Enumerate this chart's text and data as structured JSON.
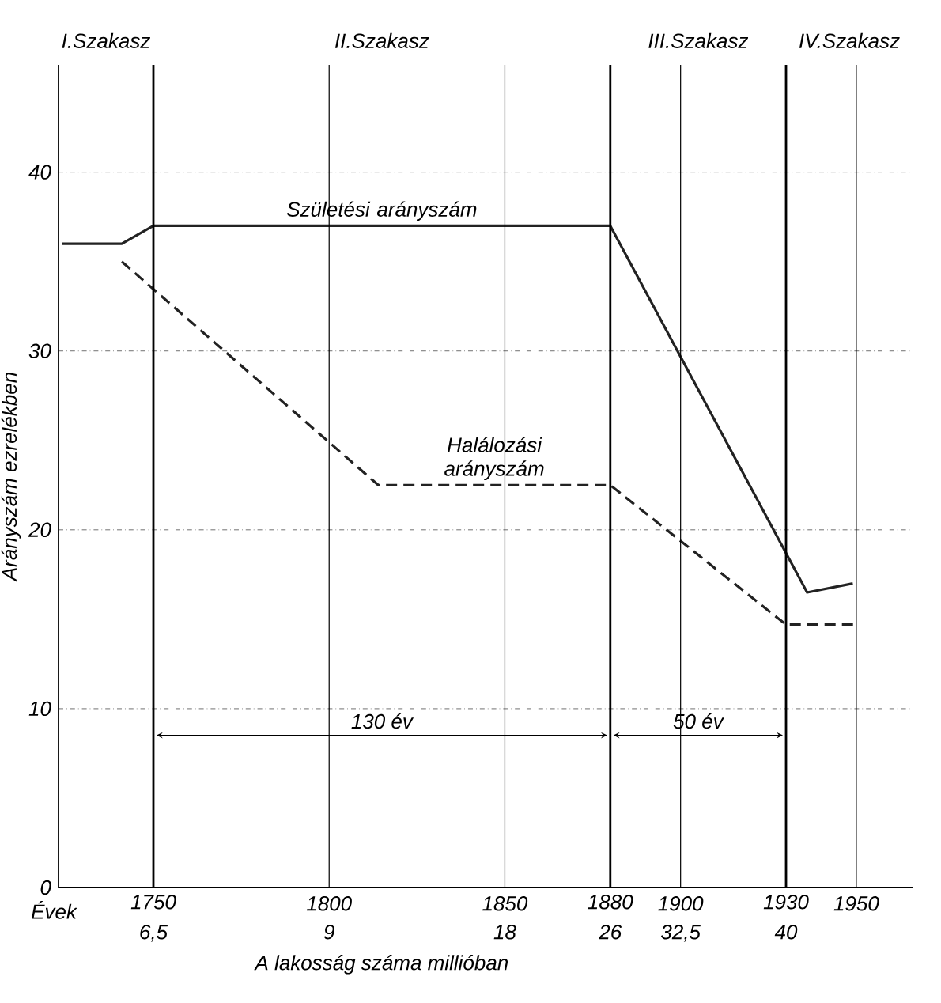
{
  "chart_data": {
    "type": "line",
    "xlabel": "Évek",
    "ylabel": "Arányszám ezrelékben",
    "xlim": [
      1723,
      1966
    ],
    "ylim": [
      0,
      46
    ],
    "xticks": [
      1800,
      1850,
      1900,
      1950
    ],
    "yticks": [
      0,
      10,
      20,
      30,
      40
    ],
    "grid": true,
    "series": [
      {
        "name": "Születési arányszám",
        "color": "#222222",
        "line_style": "solid",
        "x": [
          1724,
          1741,
          1750,
          1880,
          1936,
          1949
        ],
        "values": [
          36,
          36,
          37,
          37,
          16.5,
          17
        ]
      },
      {
        "name": "Halálozási arányszám",
        "color": "#222222",
        "line_style": "dashed",
        "x": [
          1741,
          1814,
          1880,
          1930,
          1950
        ],
        "values": [
          35,
          22.5,
          22.5,
          14.7,
          14.7
        ]
      }
    ],
    "ref_lines": [
      {
        "axis": "x",
        "value": 1750,
        "label": "1750"
      },
      {
        "axis": "x",
        "value": 1880,
        "label": "1880"
      },
      {
        "axis": "x",
        "value": 1930,
        "label": "1930"
      }
    ],
    "annotations": [
      "I.Szakasz",
      "II.Szakasz",
      "III.Szakasz",
      "IV.Szakasz",
      "130 év",
      "50 év",
      "6,5",
      "9",
      "18",
      "26",
      "32,5",
      "40",
      "A lakosság száma millióban"
    ]
  }
}
